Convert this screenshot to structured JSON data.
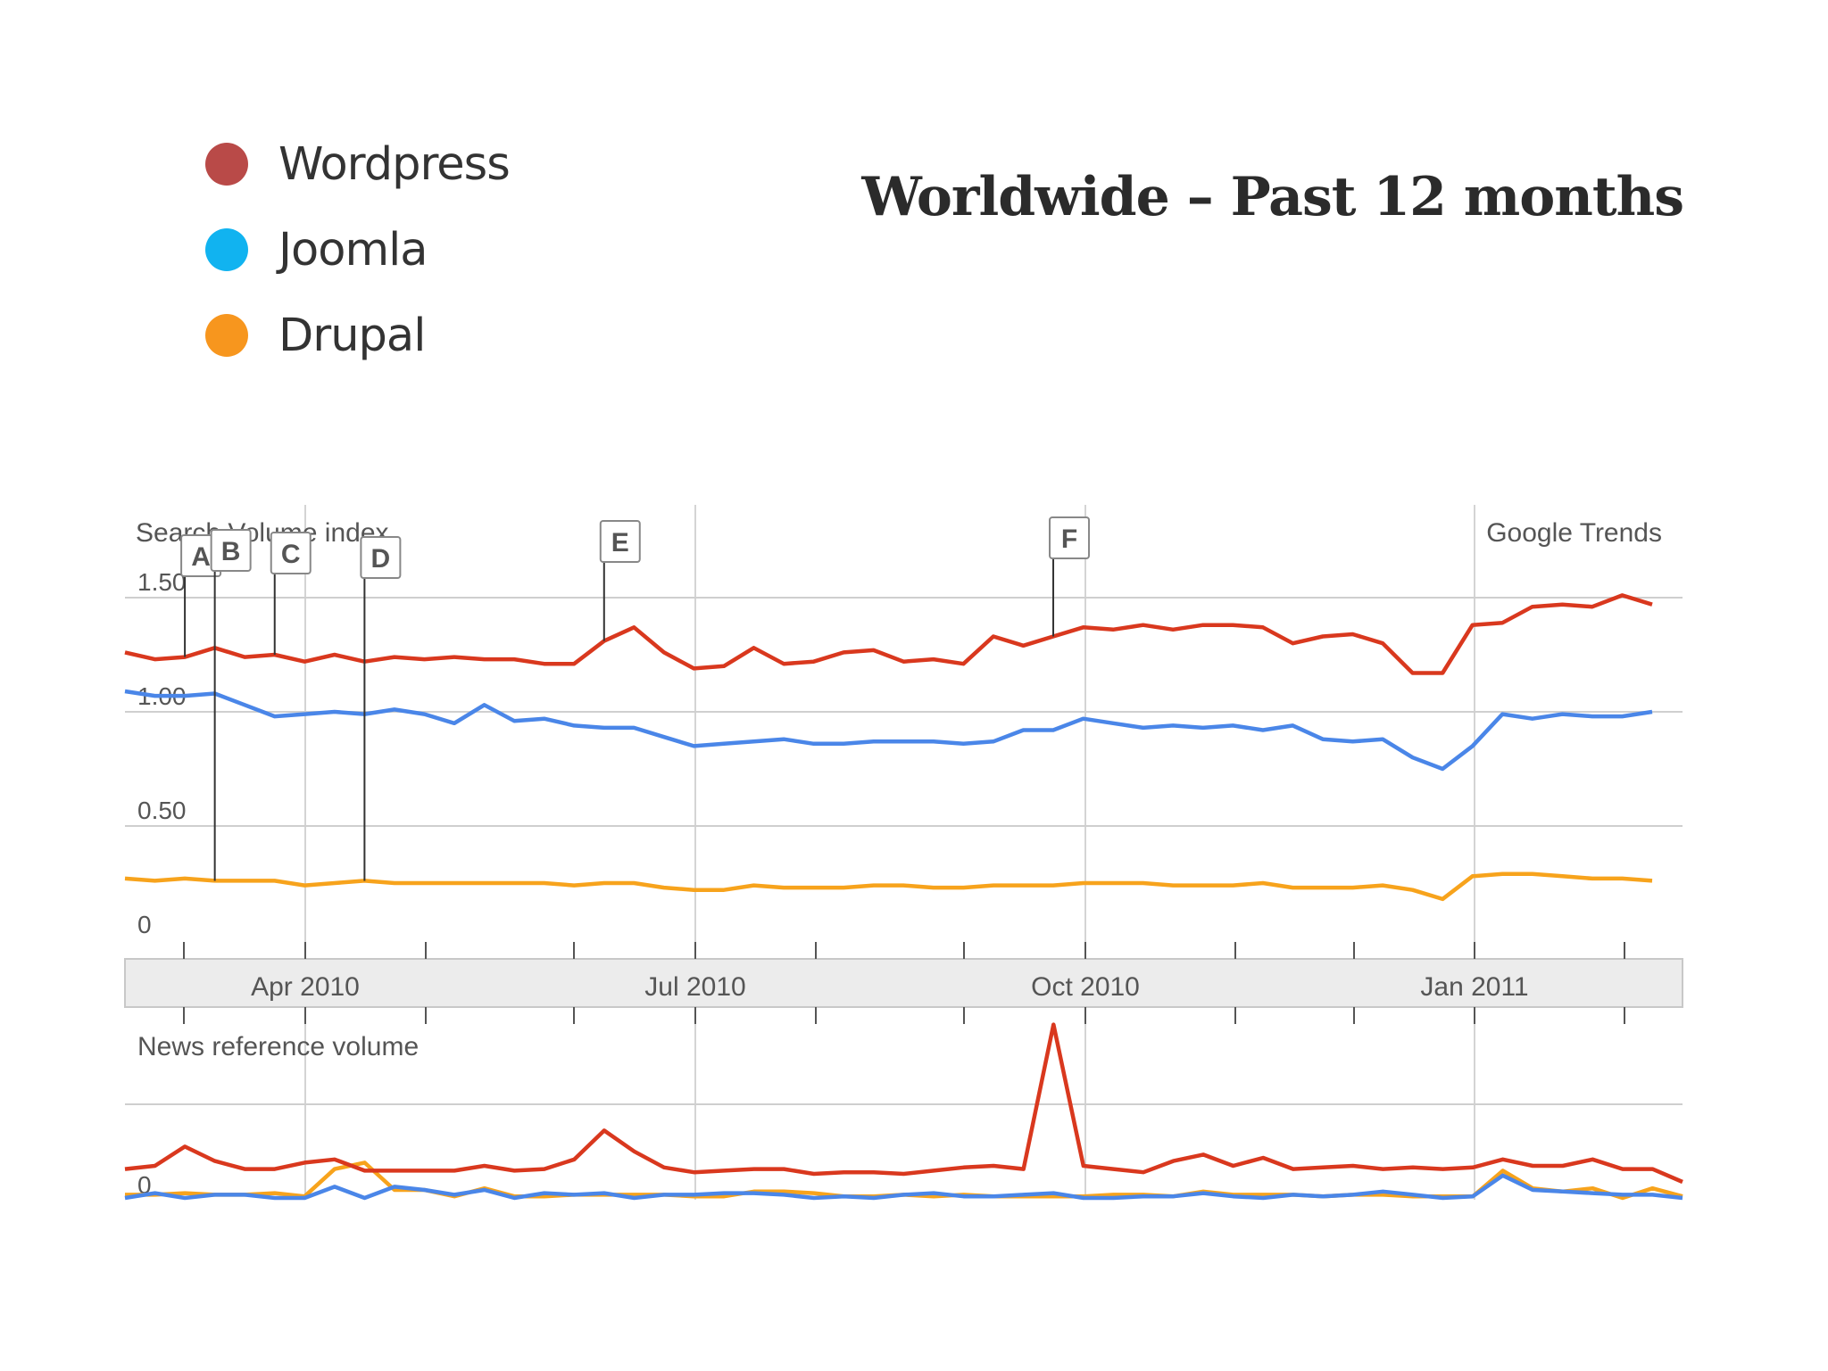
{
  "title": "Worldwide – Past 12 months",
  "legend": {
    "items": [
      {
        "label": "Wordpress",
        "color": "#b94a48"
      },
      {
        "label": "Joomla",
        "color": "#11b3f0"
      },
      {
        "label": "Drupal",
        "color": "#f7961e"
      }
    ]
  },
  "chart_data": [
    {
      "type": "line",
      "title": "Search Volume index",
      "source_label": "Google Trends",
      "ylim": [
        0,
        2.0
      ],
      "y_ticks": [
        "0",
        "0.50",
        "1.00",
        "1.50"
      ],
      "x_tick_labels": [
        "Apr 2010",
        "Jul 2010",
        "Oct 2010",
        "Jan 2011"
      ],
      "colors": {
        "Wordpress": "#d9381e",
        "Joomla": "#4a86e8",
        "Drupal": "#f7a31c"
      },
      "series": [
        {
          "name": "Wordpress",
          "values": [
            1.26,
            1.23,
            1.24,
            1.28,
            1.24,
            1.25,
            1.22,
            1.25,
            1.22,
            1.24,
            1.23,
            1.24,
            1.23,
            1.23,
            1.21,
            1.21,
            1.31,
            1.37,
            1.26,
            1.19,
            1.2,
            1.28,
            1.21,
            1.22,
            1.26,
            1.27,
            1.22,
            1.23,
            1.21,
            1.33,
            1.29,
            1.33,
            1.37,
            1.36,
            1.38,
            1.36,
            1.38,
            1.38,
            1.37,
            1.3,
            1.33,
            1.34,
            1.3,
            1.17,
            1.17,
            1.38,
            1.39,
            1.46,
            1.47,
            1.46,
            1.51,
            1.47
          ]
        },
        {
          "name": "Joomla",
          "values": [
            1.09,
            1.07,
            1.07,
            1.08,
            1.03,
            0.98,
            0.99,
            1.0,
            0.99,
            1.01,
            0.99,
            0.95,
            1.03,
            0.96,
            0.97,
            0.94,
            0.93,
            0.93,
            0.89,
            0.85,
            0.86,
            0.87,
            0.88,
            0.86,
            0.86,
            0.87,
            0.87,
            0.87,
            0.86,
            0.87,
            0.92,
            0.92,
            0.97,
            0.95,
            0.93,
            0.94,
            0.93,
            0.94,
            0.92,
            0.94,
            0.88,
            0.87,
            0.88,
            0.8,
            0.75,
            0.85,
            0.99,
            0.97,
            0.99,
            0.98,
            0.98,
            1.0
          ]
        },
        {
          "name": "Drupal",
          "values": [
            0.27,
            0.26,
            0.27,
            0.26,
            0.26,
            0.26,
            0.24,
            0.25,
            0.26,
            0.25,
            0.25,
            0.25,
            0.25,
            0.25,
            0.25,
            0.24,
            0.25,
            0.25,
            0.23,
            0.22,
            0.22,
            0.24,
            0.23,
            0.23,
            0.23,
            0.24,
            0.24,
            0.23,
            0.23,
            0.24,
            0.24,
            0.24,
            0.25,
            0.25,
            0.25,
            0.24,
            0.24,
            0.24,
            0.25,
            0.23,
            0.23,
            0.23,
            0.24,
            0.22,
            0.18,
            0.28,
            0.29,
            0.29,
            0.28,
            0.27,
            0.27,
            0.26
          ]
        }
      ],
      "annotations": [
        {
          "letter": "A",
          "color": "#d9381e",
          "week": 2,
          "series": "Wordpress"
        },
        {
          "letter": "B",
          "color": "#f7a31c",
          "week": 3,
          "series": "Drupal"
        },
        {
          "letter": "C",
          "color": "#d9381e",
          "week": 5,
          "series": "Wordpress"
        },
        {
          "letter": "D",
          "color": "#f7a31c",
          "week": 8,
          "series": "Drupal"
        },
        {
          "letter": "E",
          "color": "#d9381e",
          "week": 16,
          "series": "Wordpress"
        },
        {
          "letter": "F",
          "color": "#d9381e",
          "week": 31,
          "series": "Wordpress"
        }
      ]
    },
    {
      "type": "line",
      "title": "News reference volume",
      "y_ticks": [
        "0"
      ],
      "ylim": [
        0,
        2.0
      ],
      "series": [
        {
          "name": "Wordpress",
          "values": [
            0.18,
            0.2,
            0.32,
            0.23,
            0.18,
            0.18,
            0.22,
            0.24,
            0.17,
            0.17,
            0.17,
            0.17,
            0.2,
            0.17,
            0.18,
            0.24,
            0.42,
            0.29,
            0.19,
            0.16,
            0.17,
            0.18,
            0.18,
            0.15,
            0.16,
            0.16,
            0.15,
            0.17,
            0.19,
            0.2,
            0.18,
            1.08,
            0.2,
            0.18,
            0.16,
            0.23,
            0.27,
            0.2,
            0.25,
            0.18,
            0.19,
            0.2,
            0.18,
            0.19,
            0.18,
            0.19,
            0.24,
            0.2,
            0.2,
            0.24,
            0.18,
            0.18,
            0.1
          ]
        },
        {
          "name": "Joomla",
          "values": [
            0.0,
            0.03,
            0.0,
            0.02,
            0.02,
            0.0,
            0.0,
            0.07,
            0.0,
            0.07,
            0.05,
            0.02,
            0.05,
            0.0,
            0.03,
            0.02,
            0.03,
            0.0,
            0.02,
            0.02,
            0.03,
            0.03,
            0.02,
            0.0,
            0.01,
            0.0,
            0.02,
            0.03,
            0.01,
            0.01,
            0.02,
            0.03,
            0.0,
            0.0,
            0.01,
            0.01,
            0.03,
            0.01,
            0.0,
            0.02,
            0.01,
            0.02,
            0.04,
            0.02,
            0.0,
            0.01,
            0.14,
            0.05,
            0.04,
            0.03,
            0.02,
            0.02,
            0.0
          ]
        },
        {
          "name": "Drupal",
          "values": [
            0.02,
            0.02,
            0.03,
            0.02,
            0.02,
            0.03,
            0.01,
            0.18,
            0.22,
            0.05,
            0.05,
            0.01,
            0.06,
            0.01,
            0.01,
            0.02,
            0.02,
            0.02,
            0.02,
            0.01,
            0.01,
            0.04,
            0.04,
            0.03,
            0.01,
            0.01,
            0.02,
            0.01,
            0.02,
            0.01,
            0.01,
            0.01,
            0.01,
            0.02,
            0.02,
            0.01,
            0.04,
            0.02,
            0.02,
            0.02,
            0.01,
            0.02,
            0.02,
            0.01,
            0.01,
            0.01,
            0.17,
            0.06,
            0.04,
            0.06,
            0.0,
            0.06,
            0.01
          ]
        }
      ]
    }
  ]
}
